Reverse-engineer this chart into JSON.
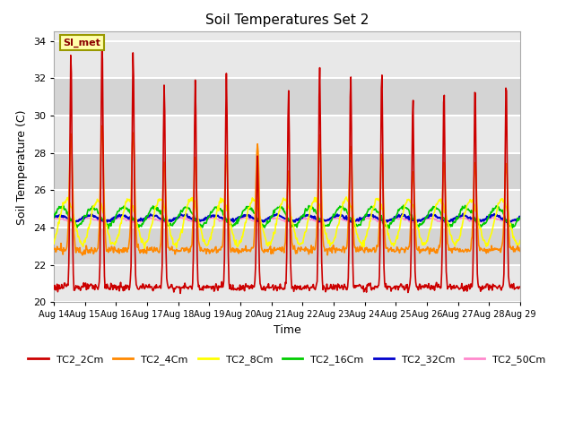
{
  "title": "Soil Temperatures Set 2",
  "xlabel": "Time",
  "ylabel": "Soil Temperature (C)",
  "ylim": [
    20,
    34.5
  ],
  "yticks": [
    20,
    22,
    24,
    26,
    28,
    30,
    32,
    34
  ],
  "annotation": "SI_met",
  "background_color": "#ffffff",
  "plot_bg_bands": [
    "#e8e8e8",
    "#d8d8d8"
  ],
  "grid_color": "#ffffff",
  "series_colors": {
    "TC2_2Cm": "#cc0000",
    "TC2_4Cm": "#ff8800",
    "TC2_8Cm": "#ffff00",
    "TC2_16Cm": "#00cc00",
    "TC2_32Cm": "#0000cc",
    "TC2_50Cm": "#ff88cc"
  },
  "xtick_labels": [
    "Aug 14",
    "Aug 15",
    "Aug 16",
    "Aug 17",
    "Aug 18",
    "Aug 19",
    "Aug 20",
    "Aug 21",
    "Aug 22",
    "Aug 23",
    "Aug 24",
    "Aug 25",
    "Aug 26",
    "Aug 27",
    "Aug 28",
    "Aug 29"
  ],
  "n_days": 15,
  "pts_per_day": 48,
  "peak_heights_2cm": [
    33.5,
    34.3,
    33.5,
    31.8,
    32.0,
    32.2,
    27.7,
    31.4,
    32.6,
    32.2,
    32.5,
    31.0,
    31.5,
    31.7,
    32.0
  ],
  "peak_heights_4cm": [
    29.0,
    29.5,
    29.2,
    27.5,
    27.8,
    28.0,
    28.5,
    27.0,
    29.0,
    28.5,
    28.0,
    27.0,
    27.5,
    27.5,
    27.5
  ],
  "min_2cm": 20.8,
  "min_4cm": 22.8,
  "base_8cm": 24.3,
  "amp_8cm": 1.2,
  "base_16cm": 24.6,
  "amp_16cm": 0.5,
  "base_32cm": 24.5,
  "amp_32cm": 0.15,
  "base_50cm": 24.4,
  "amp_50cm": 0.1
}
